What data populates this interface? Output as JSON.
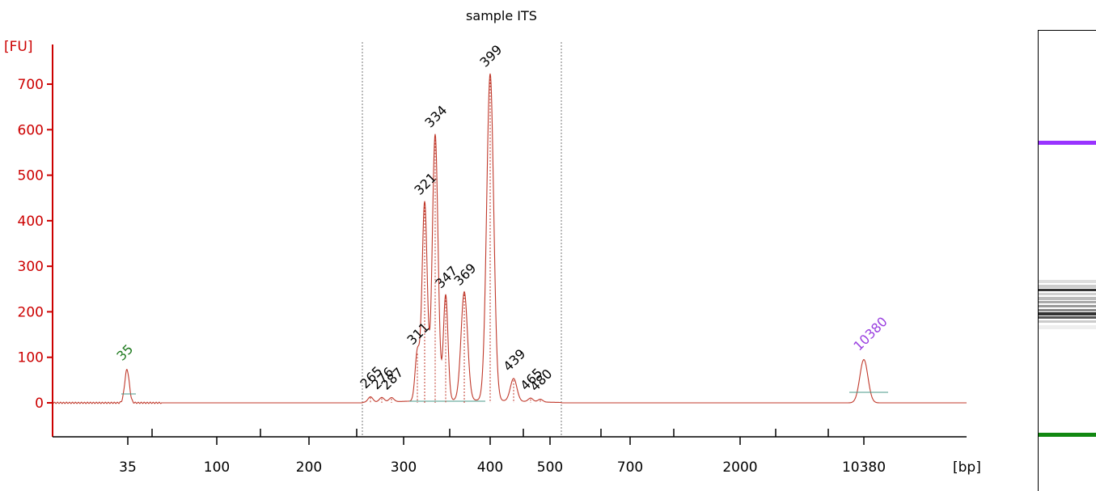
{
  "chart_data": {
    "type": "line",
    "title": "sample ITS",
    "ylabel": "[FU]",
    "xlabel": "[bp]",
    "ylim": [
      -75,
      780
    ],
    "y_ticks": [
      0,
      100,
      200,
      300,
      400,
      500,
      600,
      700
    ],
    "x_tick_labels": [
      "35",
      "100",
      "200",
      "300",
      "400",
      "500",
      "700",
      "2000",
      "10380"
    ],
    "marker_peaks": [
      {
        "label": "35",
        "height": 73,
        "color": "#1f7a1f"
      },
      {
        "label": "10380",
        "height": 95,
        "color": "#9a3fe0"
      }
    ],
    "peaks": [
      {
        "label": "265",
        "height": 12
      },
      {
        "label": "276",
        "height": 10
      },
      {
        "label": "287",
        "height": 9
      },
      {
        "label": "311",
        "height": 108
      },
      {
        "label": "321",
        "height": 437
      },
      {
        "label": "334",
        "height": 585
      },
      {
        "label": "347",
        "height": 232
      },
      {
        "label": "369",
        "height": 238
      },
      {
        "label": "399",
        "height": 718
      },
      {
        "label": "439",
        "height": 50
      },
      {
        "label": "465",
        "height": 8
      },
      {
        "label": "480",
        "height": 6
      }
    ],
    "series_color": "#c0392b",
    "axis_color": "#cc0000"
  },
  "gel": {
    "upper_marker_color": "#9933ff",
    "lower_marker_color": "#118811"
  }
}
